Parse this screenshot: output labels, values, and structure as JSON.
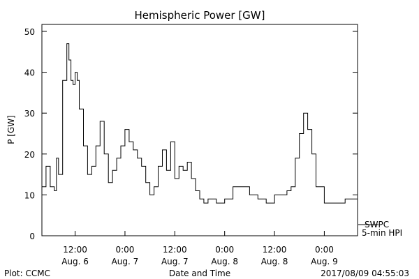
{
  "chart_data": {
    "type": "line",
    "title": "Hemispheric Power [GW]",
    "xlabel": "Date and Time",
    "ylabel": "P [GW]",
    "ylim": [
      0,
      50
    ],
    "yticks": [
      0,
      10,
      20,
      30,
      40,
      50
    ],
    "xrange": [
      "2017-08-06 04:00",
      "2017-08-09 08:00"
    ],
    "xticks": [
      {
        "t": "2017-08-06 12:00",
        "line1": "12:00",
        "line2": "Aug. 6"
      },
      {
        "t": "2017-08-07 00:00",
        "line1": "0:00",
        "line2": "Aug. 7"
      },
      {
        "t": "2017-08-07 12:00",
        "line1": "12:00",
        "line2": "Aug. 7"
      },
      {
        "t": "2017-08-08 00:00",
        "line1": "0:00",
        "line2": "Aug. 8"
      },
      {
        "t": "2017-08-08 12:00",
        "line1": "12:00",
        "line2": "Aug. 8"
      },
      {
        "t": "2017-08-09 00:00",
        "line1": "0:00",
        "line2": "Aug. 9"
      }
    ],
    "grid": false,
    "legend_position": "right, outside",
    "series": [
      {
        "name": "SWPC 5-min HPI",
        "color": "#000000",
        "x": [
          "2017-08-06 04:00",
          "2017-08-06 05:00",
          "2017-08-06 06:00",
          "2017-08-06 07:00",
          "2017-08-06 07:30",
          "2017-08-06 08:00",
          "2017-08-06 09:00",
          "2017-08-06 10:00",
          "2017-08-06 10:30",
          "2017-08-06 11:00",
          "2017-08-06 11:30",
          "2017-08-06 12:00",
          "2017-08-06 12:30",
          "2017-08-06 13:00",
          "2017-08-06 14:00",
          "2017-08-06 15:00",
          "2017-08-06 16:00",
          "2017-08-06 17:00",
          "2017-08-06 18:00",
          "2017-08-06 19:00",
          "2017-08-06 20:00",
          "2017-08-06 21:00",
          "2017-08-06 22:00",
          "2017-08-06 23:00",
          "2017-08-07 00:00",
          "2017-08-07 01:00",
          "2017-08-07 02:00",
          "2017-08-07 03:00",
          "2017-08-07 04:00",
          "2017-08-07 05:00",
          "2017-08-07 06:00",
          "2017-08-07 07:00",
          "2017-08-07 08:00",
          "2017-08-07 09:00",
          "2017-08-07 10:00",
          "2017-08-07 11:00",
          "2017-08-07 12:00",
          "2017-08-07 13:00",
          "2017-08-07 14:00",
          "2017-08-07 15:00",
          "2017-08-07 16:00",
          "2017-08-07 17:00",
          "2017-08-07 18:00",
          "2017-08-07 19:00",
          "2017-08-07 20:00",
          "2017-08-07 22:00",
          "2017-08-08 00:00",
          "2017-08-08 02:00",
          "2017-08-08 04:00",
          "2017-08-08 06:00",
          "2017-08-08 08:00",
          "2017-08-08 10:00",
          "2017-08-08 12:00",
          "2017-08-08 14:00",
          "2017-08-08 15:00",
          "2017-08-08 16:00",
          "2017-08-08 17:00",
          "2017-08-08 18:00",
          "2017-08-08 19:00",
          "2017-08-08 20:00",
          "2017-08-08 21:00",
          "2017-08-08 22:00",
          "2017-08-09 00:00",
          "2017-08-09 02:00",
          "2017-08-09 04:00",
          "2017-08-09 05:00",
          "2017-08-09 08:00"
        ],
        "y": [
          12,
          17,
          12,
          11,
          19,
          15,
          38,
          47,
          43,
          38,
          37,
          40,
          38,
          31,
          22,
          15,
          17,
          22,
          28,
          20,
          13,
          16,
          19,
          22,
          26,
          23,
          21,
          19,
          17,
          13,
          10,
          12,
          17,
          21,
          16,
          23,
          14,
          17,
          16,
          18,
          14,
          11,
          9,
          8,
          9,
          8,
          9,
          12,
          12,
          10,
          9,
          8,
          10,
          10,
          11,
          12,
          19,
          25,
          30,
          26,
          20,
          12,
          8,
          8,
          8,
          9,
          9
        ]
      }
    ]
  },
  "legend": {
    "line1": "SWPC",
    "line2": "5-min HPI"
  },
  "footer": {
    "left": "Plot: CCMC",
    "right": "2017/08/09 04:55:03"
  }
}
